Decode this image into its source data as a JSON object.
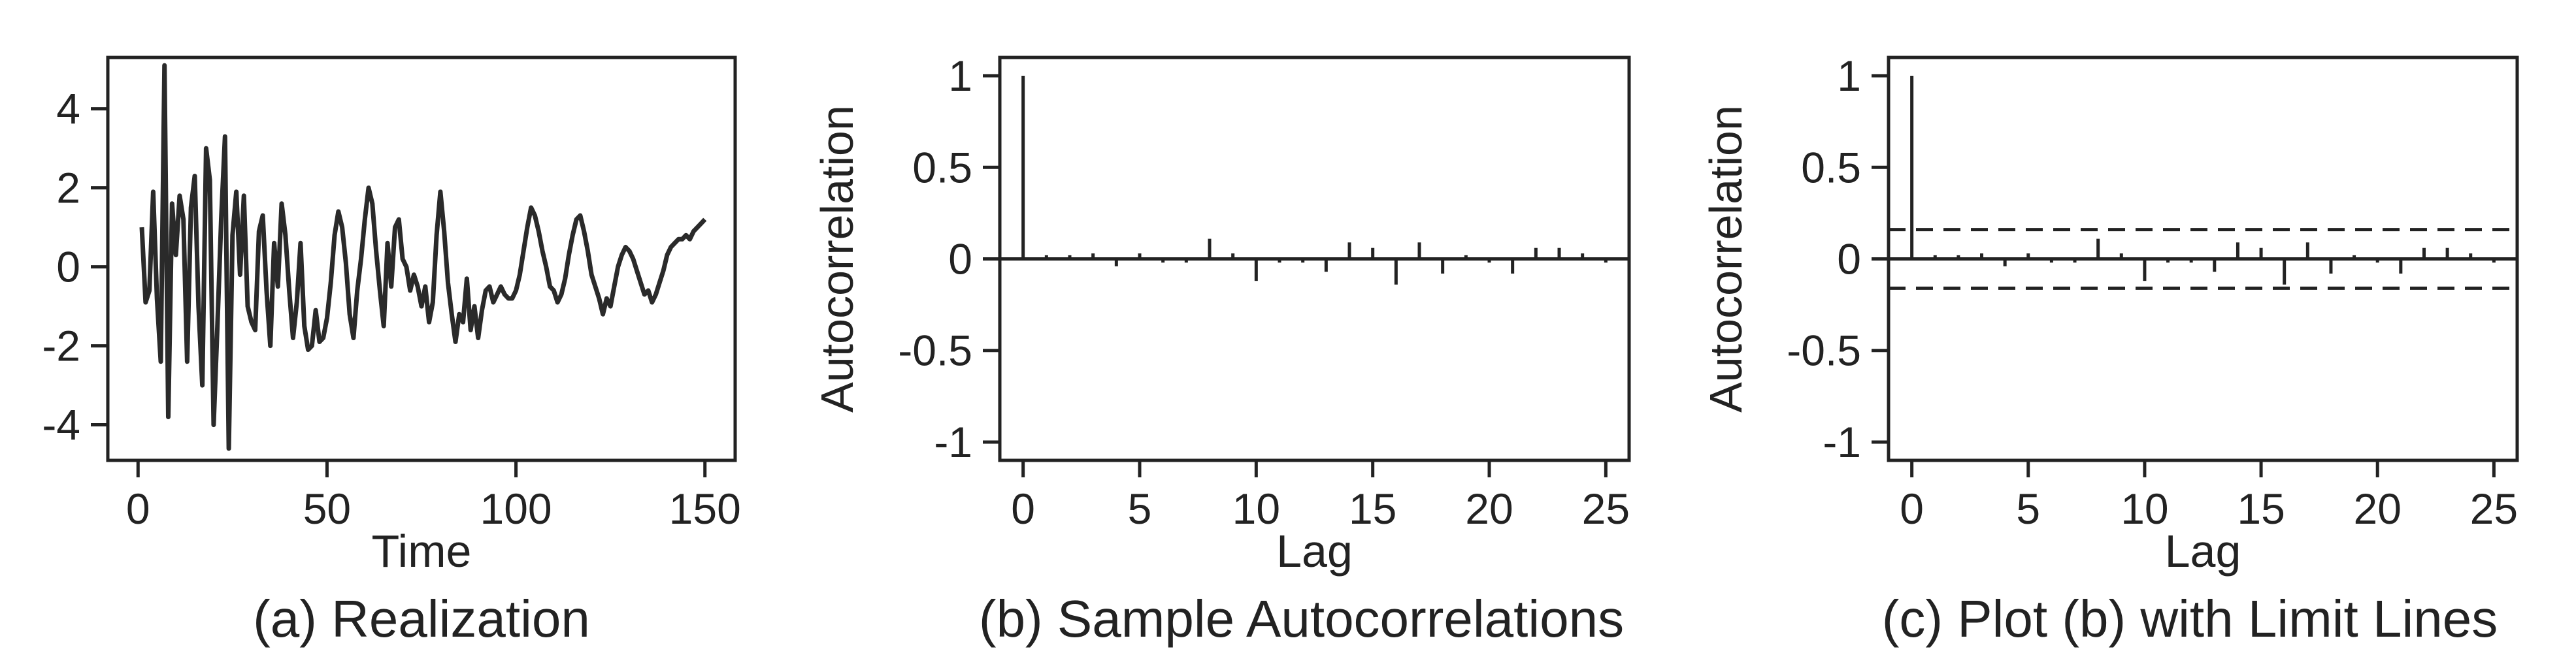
{
  "chart_data": [
    {
      "type": "line",
      "xlabel": "Time",
      "ylabel": "",
      "caption": "(a) Realization",
      "xlim": [
        -8,
        158
      ],
      "ylim": [
        -4.9,
        5.3
      ],
      "xticks": [
        0,
        50,
        100,
        150
      ],
      "yticks": [
        -4,
        -2,
        0,
        2,
        4
      ],
      "grid": false,
      "series": [
        {
          "x": [
            1,
            2,
            3,
            4,
            5,
            6,
            7,
            8,
            9,
            10,
            11,
            12,
            13,
            14,
            15,
            16,
            17,
            18,
            19,
            20,
            21,
            22,
            23,
            24,
            25,
            26,
            27,
            28,
            29,
            30,
            31,
            32,
            33,
            34,
            35,
            36,
            37,
            38,
            39,
            40,
            41,
            42,
            43,
            44,
            45,
            46,
            47,
            48,
            49,
            50,
            51,
            52,
            53,
            54,
            55,
            56,
            57,
            58,
            59,
            60,
            61,
            62,
            63,
            64,
            65,
            66,
            67,
            68,
            69,
            70,
            71,
            72,
            73,
            74,
            75,
            76,
            77,
            78,
            79,
            80,
            81,
            82,
            83,
            84,
            85,
            86,
            87,
            88,
            89,
            90,
            91,
            92,
            93,
            94,
            95,
            96,
            97,
            98,
            99,
            100,
            101,
            102,
            103,
            104,
            105,
            106,
            107,
            108,
            109,
            110,
            111,
            112,
            113,
            114,
            115,
            116,
            117,
            118,
            119,
            120,
            121,
            122,
            123,
            124,
            125,
            126,
            127,
            128,
            129,
            130,
            131,
            132,
            133,
            134,
            135,
            136,
            137,
            138,
            139,
            140,
            141,
            142,
            143,
            144,
            145,
            146,
            147,
            148,
            149,
            150
          ],
          "y": [
            1.0,
            -0.9,
            -0.6,
            1.9,
            -0.8,
            -2.4,
            5.1,
            -3.8,
            1.6,
            0.3,
            1.8,
            1.2,
            -2.4,
            1.5,
            2.3,
            -1.0,
            -3.0,
            3.0,
            2.2,
            -4.0,
            -1.5,
            1.2,
            3.3,
            -4.6,
            0.8,
            1.9,
            -0.2,
            1.8,
            -1.0,
            -1.4,
            -1.6,
            0.9,
            1.3,
            -0.6,
            -2.0,
            0.6,
            -0.5,
            1.6,
            0.8,
            -0.6,
            -1.8,
            -0.9,
            0.6,
            -1.5,
            -2.1,
            -2.0,
            -1.1,
            -1.9,
            -1.8,
            -1.3,
            -0.4,
            0.8,
            1.4,
            1.0,
            0.1,
            -1.2,
            -1.8,
            -0.6,
            0.2,
            1.2,
            2.0,
            1.6,
            0.4,
            -0.6,
            -1.5,
            0.6,
            -0.5,
            1.0,
            1.2,
            0.2,
            0.0,
            -0.6,
            -0.2,
            -0.5,
            -1.0,
            -0.5,
            -1.4,
            -0.9,
            0.8,
            1.9,
            0.9,
            -0.4,
            -1.2,
            -1.9,
            -1.2,
            -1.4,
            -0.3,
            -1.6,
            -1.0,
            -1.8,
            -1.1,
            -0.6,
            -0.5,
            -0.9,
            -0.7,
            -0.5,
            -0.7,
            -0.8,
            -0.8,
            -0.6,
            -0.2,
            0.4,
            1.0,
            1.5,
            1.3,
            0.9,
            0.4,
            0.0,
            -0.5,
            -0.6,
            -0.9,
            -0.7,
            -0.3,
            0.3,
            0.8,
            1.2,
            1.3,
            0.9,
            0.4,
            -0.2,
            -0.5,
            -0.8,
            -1.2,
            -0.8,
            -1.0,
            -0.5,
            0.0,
            0.3,
            0.5,
            0.4,
            0.2,
            -0.1,
            -0.4,
            -0.7,
            -0.6,
            -0.9,
            -0.7,
            -0.4,
            -0.1,
            0.3,
            0.5,
            0.6,
            0.7,
            0.7,
            0.8,
            0.7,
            0.9,
            1.0,
            1.1,
            1.2
          ]
        }
      ]
    },
    {
      "type": "bar",
      "xlabel": "Lag",
      "ylabel": "Autocorrelation",
      "caption": "(b) Sample Autocorrelations",
      "xlim": [
        -1,
        26
      ],
      "ylim": [
        -1.1,
        1.1
      ],
      "xticks": [
        0,
        5,
        10,
        15,
        20,
        25
      ],
      "yticks": [
        1.0,
        0.5,
        0.0,
        -0.5,
        -1.0
      ],
      "grid": false,
      "lags": [
        0,
        1,
        2,
        3,
        4,
        5,
        6,
        7,
        8,
        9,
        10,
        11,
        12,
        13,
        14,
        15,
        16,
        17,
        18,
        19,
        20,
        21,
        22,
        23,
        24,
        25
      ],
      "values": [
        1.0,
        0.02,
        0.02,
        0.03,
        -0.04,
        0.03,
        -0.02,
        -0.02,
        0.11,
        0.03,
        -0.12,
        -0.02,
        -0.02,
        -0.07,
        0.09,
        0.06,
        -0.14,
        0.09,
        -0.08,
        0.02,
        -0.02,
        -0.08,
        0.06,
        0.06,
        0.03,
        -0.02
      ]
    },
    {
      "type": "bar",
      "xlabel": "Lag",
      "ylabel": "Autocorrelation",
      "caption": "(c) Plot (b) with Limit Lines",
      "xlim": [
        -1,
        26
      ],
      "ylim": [
        -1.1,
        1.1
      ],
      "xticks": [
        0,
        5,
        10,
        15,
        20,
        25
      ],
      "yticks": [
        1.0,
        0.5,
        0.0,
        -0.5,
        -1.0
      ],
      "grid": false,
      "limit_lines": [
        0.16,
        -0.16
      ],
      "lags": [
        0,
        1,
        2,
        3,
        4,
        5,
        6,
        7,
        8,
        9,
        10,
        11,
        12,
        13,
        14,
        15,
        16,
        17,
        18,
        19,
        20,
        21,
        22,
        23,
        24,
        25
      ],
      "values": [
        1.0,
        0.02,
        0.02,
        0.03,
        -0.04,
        0.03,
        -0.02,
        -0.02,
        0.11,
        0.03,
        -0.12,
        -0.02,
        -0.02,
        -0.07,
        0.09,
        0.06,
        -0.14,
        0.09,
        -0.08,
        0.02,
        -0.02,
        -0.08,
        0.06,
        0.06,
        0.03,
        -0.02
      ]
    }
  ]
}
